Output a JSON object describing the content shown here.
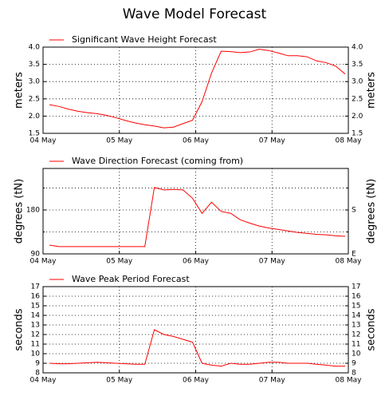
{
  "title": "Wave Model Forecast",
  "chart_data": [
    {
      "type": "line",
      "legend_loc": "upper left",
      "grid": true,
      "ylabel": "meters",
      "y2label": "meters",
      "xlim": [
        0,
        96
      ],
      "xticks": [
        {
          "value": 0,
          "label": "04 May"
        },
        {
          "value": 24,
          "label": "05 May"
        },
        {
          "value": 48,
          "label": "06 May"
        },
        {
          "value": 72,
          "label": "07 May"
        },
        {
          "value": 96,
          "label": "08 May"
        }
      ],
      "ylim": [
        1.5,
        4.0
      ],
      "yticks": [
        {
          "value": 1.5,
          "label": "1.5"
        },
        {
          "value": 2.0,
          "label": "2.0"
        },
        {
          "value": 2.5,
          "label": "2.5"
        },
        {
          "value": 3.0,
          "label": "3.0"
        },
        {
          "value": 3.5,
          "label": "3.5"
        },
        {
          "value": 4.0,
          "label": "4.0"
        }
      ],
      "y2lim": [
        1.5,
        4.0
      ],
      "y2ticks": [
        {
          "value": 1.5,
          "label": "1.5"
        },
        {
          "value": 2.0,
          "label": "2.0"
        },
        {
          "value": 2.5,
          "label": "2.5"
        },
        {
          "value": 3.0,
          "label": "3.0"
        },
        {
          "value": 3.5,
          "label": "3.5"
        },
        {
          "value": 4.0,
          "label": "4.0"
        }
      ],
      "x": [
        2,
        5,
        8,
        11,
        14,
        17,
        20,
        23,
        26,
        29,
        32,
        35,
        38,
        41,
        44,
        47,
        50,
        53,
        56,
        59,
        62,
        65,
        68,
        71,
        74,
        77,
        80,
        83,
        86,
        89,
        92,
        95
      ],
      "series": [
        {
          "name": "Significant Wave Height Forecast",
          "color": "#ff0000",
          "values": [
            2.33,
            2.28,
            2.2,
            2.14,
            2.1,
            2.07,
            2.02,
            1.95,
            1.87,
            1.8,
            1.75,
            1.71,
            1.66,
            1.68,
            1.78,
            1.88,
            2.42,
            3.25,
            3.88,
            3.87,
            3.84,
            3.86,
            3.94,
            3.9,
            3.83,
            3.75,
            3.75,
            3.72,
            3.6,
            3.55,
            3.45,
            3.22
          ]
        }
      ]
    },
    {
      "type": "line",
      "legend_loc": "upper left",
      "grid": true,
      "ylabel": "degrees (tN)",
      "y2label": "degrees (tN)",
      "xlim": [
        0,
        96
      ],
      "xticks": [
        {
          "value": 0,
          "label": "04 May"
        },
        {
          "value": 24,
          "label": "05 May"
        },
        {
          "value": 48,
          "label": "06 May"
        },
        {
          "value": 72,
          "label": "07 May"
        },
        {
          "value": 96,
          "label": "08 May"
        }
      ],
      "ylim": [
        90,
        265
      ],
      "yticks": [
        90,
        180
      ],
      "minor_yticks": [
        135,
        225
      ],
      "y2lim": [
        90,
        265
      ],
      "y2ticks": [
        {
          "value": 90,
          "label": "E"
        },
        {
          "value": 180,
          "label": "S"
        }
      ],
      "x": [
        2,
        5,
        8,
        11,
        14,
        17,
        20,
        23,
        26,
        29,
        32,
        35,
        38,
        41,
        44,
        47,
        50,
        53,
        56,
        59,
        62,
        65,
        68,
        71,
        74,
        77,
        80,
        83,
        86,
        89,
        92,
        95
      ],
      "series": [
        {
          "name": "Wave Direction Forecast (coming from)",
          "color": "#ff0000",
          "values": [
            108,
            105,
            105,
            105,
            105,
            105,
            105,
            105,
            105,
            105,
            105,
            226,
            221,
            222,
            221,
            204,
            173,
            196,
            177,
            173,
            160,
            153,
            147,
            143,
            140,
            137,
            134,
            132,
            130,
            129,
            127,
            126
          ]
        }
      ]
    },
    {
      "type": "line",
      "legend_loc": "upper left",
      "grid": true,
      "ylabel": "seconds",
      "y2label": "seconds",
      "xlim": [
        0,
        96
      ],
      "xticks": [
        {
          "value": 0,
          "label": "04 May"
        },
        {
          "value": 24,
          "label": "05 May"
        },
        {
          "value": 48,
          "label": "06 May"
        },
        {
          "value": 72,
          "label": "07 May"
        },
        {
          "value": 96,
          "label": "08 May"
        }
      ],
      "ylim": [
        8,
        17
      ],
      "yticks": [
        8,
        9,
        10,
        11,
        12,
        13,
        14,
        15,
        16,
        17
      ],
      "y2lim": [
        8,
        17
      ],
      "y2ticks": [
        8,
        9,
        10,
        11,
        12,
        13,
        14,
        15,
        16,
        17
      ],
      "x": [
        2,
        5,
        8,
        11,
        14,
        17,
        20,
        23,
        26,
        29,
        32,
        35,
        38,
        41,
        44,
        47,
        50,
        53,
        56,
        59,
        62,
        65,
        68,
        71,
        74,
        77,
        80,
        83,
        86,
        89,
        92,
        95
      ],
      "series": [
        {
          "name": "Wave Peak Period Forecast",
          "color": "#ff0000",
          "values": [
            9.0,
            8.95,
            8.95,
            9.0,
            9.05,
            9.1,
            9.05,
            9.0,
            8.95,
            8.9,
            8.9,
            12.5,
            12.0,
            11.8,
            11.5,
            11.2,
            9.0,
            8.8,
            8.7,
            9.0,
            8.9,
            8.9,
            9.0,
            9.1,
            9.1,
            9.0,
            9.0,
            9.0,
            8.9,
            8.8,
            8.7,
            8.7
          ]
        }
      ]
    }
  ]
}
